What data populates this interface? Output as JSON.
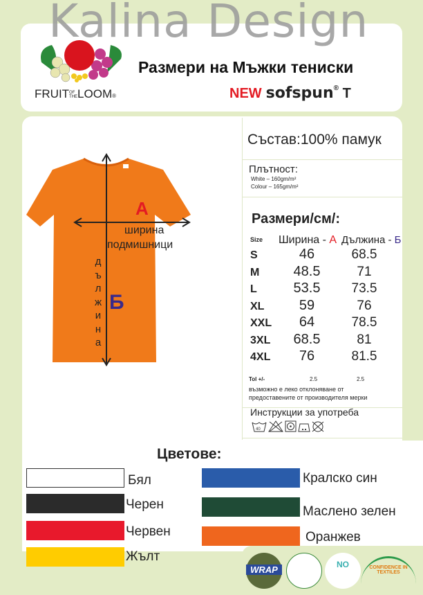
{
  "watermark": "Kalina Design",
  "header": {
    "title": "Размери на Мъжки тениски",
    "brand_left": "FRUIT",
    "brand_of": "OF",
    "brand_the": "THE",
    "brand_right": "LOOM",
    "reg": "®",
    "new": "NEW",
    "product": "sofspun",
    "product_suffix": "T"
  },
  "diagram": {
    "label_a": "А",
    "width_label_1": "ширина",
    "width_label_2": "подмишници",
    "label_b": "Б",
    "length_letters": [
      "д",
      "ъ",
      "л",
      "ж",
      "и",
      "н",
      "а"
    ],
    "shirt_color": "#f07a1a"
  },
  "composition": "Състав:100% памук",
  "density": {
    "title": "Плътност:",
    "white": "White – 160gm/m²",
    "colour": "Colour – 165gm/m²"
  },
  "sizes": {
    "title": "Размери/см/:",
    "col_size": "Size",
    "col_width": "Ширина - ",
    "col_width_letter": "А",
    "col_length": "Дължина - ",
    "col_length_letter": "Б",
    "rows": [
      [
        "S",
        "46",
        "68.5"
      ],
      [
        "M",
        "48.5",
        "71"
      ],
      [
        "L",
        "53.5",
        "73.5"
      ],
      [
        "XL",
        "59",
        "76"
      ],
      [
        "XXL",
        "64",
        "78.5"
      ],
      [
        "3XL",
        "68.5",
        "81"
      ],
      [
        "4XL",
        "76",
        "81.5"
      ]
    ],
    "tol_label": "Tol +/-",
    "tol_width": "2.5",
    "tol_length": "2.5",
    "note_1": "възможно е леко отклоняване от",
    "note_2": "предоставените от производителя мерки"
  },
  "care": {
    "title": "Инструкции за употреба",
    "icons": [
      "wash-40-icon",
      "no-bleach-icon",
      "tumble-dry-icon",
      "iron-icon",
      "no-dry-clean-icon"
    ],
    "wash_temp": "40"
  },
  "colors": {
    "title": "Цветове:",
    "items": [
      {
        "name": "Бял",
        "hex": "#ffffff"
      },
      {
        "name": "Черен",
        "hex": "#2b2b2b"
      },
      {
        "name": "Червен",
        "hex": "#e8192c"
      },
      {
        "name": "Жълт",
        "hex": "#ffcc00"
      },
      {
        "name": "Кралско син",
        "hex": "#2a5caa"
      },
      {
        "name": "Маслено зелен",
        "hex": "#1f4b36"
      },
      {
        "name": "Оранжев",
        "hex": "#ef661e"
      }
    ]
  },
  "certs": {
    "wrap": "WRAP",
    "no_child": "NO",
    "confidence": "CONFIDENCE IN TEXTILES"
  }
}
